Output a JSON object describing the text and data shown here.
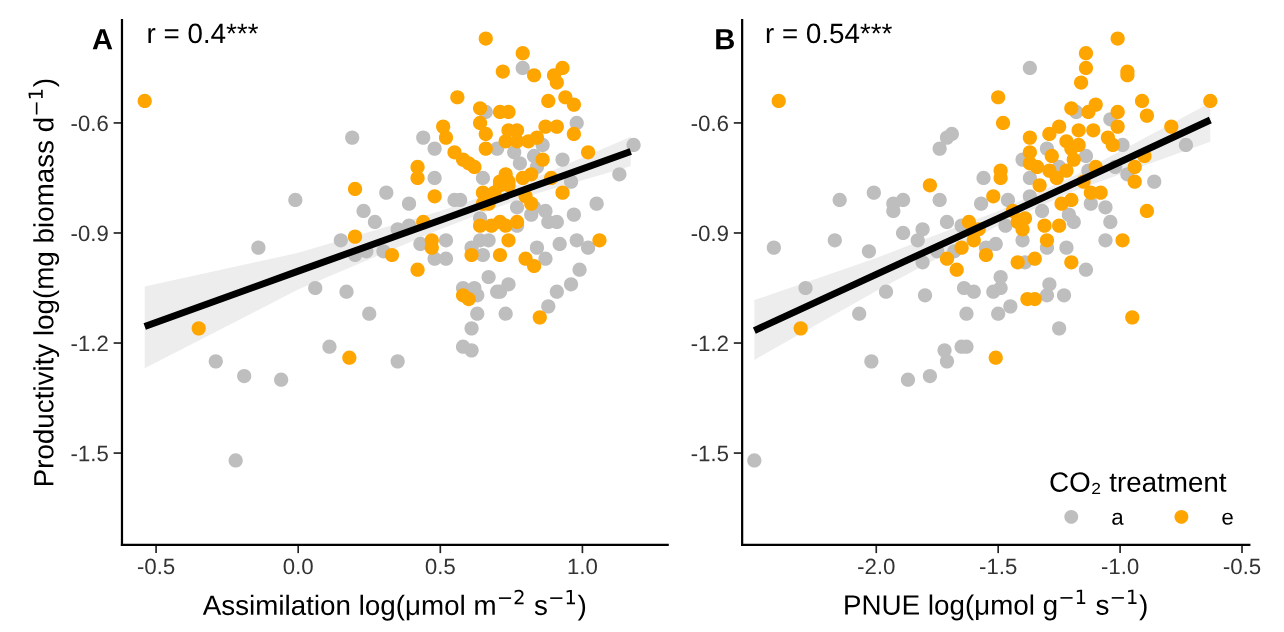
{
  "chart_data": [
    {
      "type": "scatter",
      "title": "A",
      "annotations": [
        "r = 0.4***"
      ],
      "xlabel": "Assimilation log(μmol m$^{−2}$ s$^{−1}$)",
      "ylabel": "Productivity log(mg biomass d$^{−1}$)",
      "xlim": [
        -0.62,
        1.3
      ],
      "xticks": [
        -0.5,
        {
          "value": 0,
          "label": "0.0"
        },
        0.5,
        {
          "value": 1,
          "label": "1.0"
        }
      ],
      "ylim": [
        -1.75,
        -0.32
      ],
      "yticks": [
        {
          "value": -1.5,
          "label": "-1.5"
        },
        {
          "value": -1.2,
          "label": "-1.2"
        },
        {
          "value": -0.9,
          "label": "-0.9"
        },
        {
          "value": -0.6,
          "label": "-0.6"
        }
      ],
      "grid": false,
      "legend": false,
      "series": [
        {
          "marker": "circle",
          "color": "#bebebe",
          "x": [
            0.19,
            -0.01,
            0.31,
            0.39,
            0.23,
            0.27,
            0.35,
            0.39,
            0.15,
            -0.14,
            0.2,
            0.24,
            0.3,
            0.06,
            0.17,
            0.25,
            0.11,
            0.35,
            -0.29,
            -0.19,
            -0.06,
            -0.22,
            0.79,
            0.66,
            0.98,
            0.44,
            0.48,
            0.7,
            0.86,
            0.76,
            0.78,
            0.83,
            0.84,
            0.93,
            1.18,
            1.13,
            0.48,
            0.65,
            0.96,
            0.55,
            0.57,
            0.64,
            1.05,
            0.77,
            0.83,
            0.87,
            0.64,
            0.77,
            0.82,
            0.88,
            0.91,
            0.97,
            0.43,
            0.52,
            0.61,
            0.64,
            0.67,
            0.65,
            0.84,
            0.92,
            0.98,
            1.02,
            0.48,
            0.52,
            0.87,
            0.99,
            0.67,
            0.58,
            0.62,
            0.63,
            0.7,
            0.74,
            0.71,
            0.96,
            0.91,
            0.88,
            0.63,
            0.73,
            0.61,
            0.58,
            0.61
          ],
          "values": [
            -0.64,
            -0.81,
            -0.79,
            -0.82,
            -0.84,
            -0.87,
            -0.89,
            -0.88,
            -0.92,
            -0.94,
            -0.96,
            -0.95,
            -0.95,
            -1.05,
            -1.06,
            -1.12,
            -1.21,
            -1.25,
            -1.25,
            -1.29,
            -1.3,
            -1.52,
            -0.45,
            -0.57,
            -0.6,
            -0.64,
            -0.67,
            -0.67,
            -0.66,
            -0.68,
            -0.71,
            -0.69,
            -0.72,
            -0.7,
            -0.66,
            -0.74,
            -0.75,
            -0.75,
            -0.76,
            -0.81,
            -0.81,
            null,
            -0.82,
            -0.83,
            -0.83,
            -0.84,
            -0.86,
            -0.88,
            -0.85,
            -0.87,
            -0.87,
            -0.85,
            -0.93,
            -0.92,
            -0.94,
            -0.92,
            -0.92,
            -0.96,
            -0.94,
            -0.93,
            -0.92,
            -0.94,
            -0.97,
            -0.97,
            -0.97,
            -1.0,
            -1.02,
            -1.05,
            -1.05,
            -1.07,
            -1.06,
            -1.04,
            -1.06,
            -1.04,
            -1.06,
            -1.1,
            -1.12,
            -1.12,
            -1.16,
            -1.21,
            -1.22
          ]
        },
        {
          "marker": "circle",
          "color": "#ffa500",
          "x": [
            -0.54,
            0.2,
            0.2,
            0.33,
            -0.35,
            0.18,
            0.66,
            0.79,
            0.72,
            0.83,
            0.93,
            0.9,
            0.91,
            0.56,
            0.88,
            0.94,
            0.97,
            0.64,
            0.64,
            0.66,
            0.71,
            0.74,
            0.51,
            0.52,
            0.74,
            0.77,
            0.73,
            0.77,
            0.81,
            0.84,
            0.87,
            0.91,
            0.97,
            0.66,
            0.55,
            0.58,
            0.6,
            0.62,
            0.86,
            1.02,
            0.42,
            0.42,
            0.73,
            0.71,
            0.71,
            0.74,
            0.74,
            0.79,
            0.82,
            0.89,
            0.93,
            0.48,
            0.65,
            0.69,
            0.67,
            0.65,
            0.8,
            0.82,
            0.64,
            0.68,
            0.71,
            0.73,
            0.77,
            0.44,
            0.74,
            0.47,
            0.47,
            0.61,
            0.71,
            1.06,
            0.8,
            0.83,
            0.42,
            0.58,
            0.6,
            0.85
          ],
          "values": [
            -0.54,
            -0.78,
            -0.91,
            -0.96,
            -1.16,
            -1.24,
            -0.37,
            -0.41,
            -0.46,
            -0.47,
            -0.45,
            -0.47,
            -0.49,
            -0.53,
            -0.54,
            -0.53,
            -0.55,
            -0.56,
            -0.6,
            -0.63,
            -0.57,
            -0.57,
            -0.61,
            -0.64,
            -0.62,
            -0.62,
            -0.65,
            -0.65,
            -0.65,
            -0.64,
            -0.61,
            -0.61,
            -0.63,
            -0.67,
            -0.68,
            -0.7,
            -0.71,
            -0.72,
            -0.7,
            -0.68,
            -0.72,
            -0.75,
            -0.74,
            -0.76,
            -0.77,
            -0.77,
            -0.76,
            -0.75,
            -0.74,
            -0.75,
            -0.79,
            -0.8,
            -0.79,
            -0.79,
            -0.82,
            -0.82,
            -0.8,
            -0.82,
            -0.88,
            -0.88,
            -0.87,
            -0.88,
            -0.87,
            -0.87,
            -0.92,
            -0.92,
            -0.94,
            -0.96,
            -0.96,
            -0.92,
            -0.97,
            -0.99,
            -1.0,
            -1.07,
            -1.08,
            -1.13
          ]
        },
        {
          "type": "line",
          "color": "#000000",
          "x": [
            -0.54,
            0.0,
            0.5,
            0.8,
            1.17
          ],
          "values": [
            -1.155,
            -1.004,
            -0.865,
            -0.781,
            -0.678
          ],
          "lower": [
            -1.269,
            -1.054,
            -0.89,
            -0.801,
            -0.718
          ],
          "upper": [
            -1.046,
            -0.954,
            -0.84,
            -0.761,
            -0.638
          ]
        }
      ]
    },
    {
      "type": "scatter",
      "title": "B",
      "annotations": [
        "r = 0.54***"
      ],
      "xlabel": "PNUE log(μmol g$^{−1}$ s$^{−1}$)",
      "legend_title": "CO₂ treatment",
      "xlim": [
        -2.55,
        -0.47
      ],
      "xticks": [
        {
          "value": -2,
          "label": "-2.0"
        },
        {
          "value": -1.5,
          "label": "-1.5"
        },
        {
          "value": -1,
          "label": "-1.0"
        },
        {
          "value": -0.5,
          "label": "-0.5"
        }
      ],
      "ylim": [
        -1.75,
        -0.32
      ],
      "yticks": [
        {
          "value": -1.5,
          "label": "-1.5"
        },
        {
          "value": -1.2,
          "label": "-1.2"
        },
        {
          "value": -0.9,
          "label": "-0.9"
        },
        {
          "value": -0.6,
          "label": "-0.6"
        }
      ],
      "grid": false,
      "legend": "bottom right",
      "series": [
        {
          "marker": "circle",
          "name": "a",
          "color": "#bebebe",
          "x": [
            -1.71,
            -1.69,
            -1.74,
            -1.56,
            -2.15,
            -2.01,
            -1.93,
            -1.93,
            -1.89,
            -1.74,
            -1.57,
            -1.71,
            -1.89,
            -1.81,
            -1.83,
            -1.65,
            -1.55,
            -2.42,
            -2.17,
            -2.03,
            -1.75,
            -1.81,
            -1.68,
            -2.29,
            -1.96,
            -1.8,
            -1.64,
            -1.6,
            -2.07,
            -1.63,
            -1.72,
            -1.71,
            -1.65,
            -1.63,
            -2.02,
            -1.87,
            -1.78,
            -2.5,
            -1.37,
            -1.18,
            -1.04,
            -0.73,
            -0.99,
            -1.3,
            -1.4,
            -1.25,
            -1.14,
            -1.13,
            -1.02,
            -0.97,
            -1.37,
            -0.86,
            -1.46,
            -1.37,
            -1.12,
            -1.06,
            -1.04,
            -1.21,
            -1.19,
            -1.32,
            -1.47,
            -1.4,
            -1.3,
            -1.22,
            -1.06,
            -1.51,
            -1.39,
            -1.14,
            -1.49,
            -1.49,
            -1.52,
            -1.45,
            -1.5,
            -1.29,
            -1.3,
            -1.23,
            -1.25
          ],
          "values": [
            -0.64,
            -0.63,
            -0.67,
            -0.75,
            -0.81,
            -0.79,
            -0.82,
            -0.84,
            -0.81,
            -0.81,
            -0.82,
            -0.87,
            -0.9,
            -0.89,
            -0.92,
            -0.88,
            -0.94,
            -0.94,
            -0.92,
            -0.95,
            -0.95,
            -0.98,
            -0.95,
            -1.05,
            -1.06,
            -1.07,
            -1.05,
            -1.06,
            -1.12,
            -1.12,
            -1.22,
            -1.25,
            -1.21,
            -1.21,
            -1.25,
            -1.3,
            -1.29,
            -1.52,
            -0.45,
            -0.57,
            -0.59,
            -0.66,
            -0.66,
            -0.67,
            -0.7,
            -0.72,
            -0.69,
            -0.73,
            -0.72,
            -0.74,
            -0.75,
            -0.76,
            -0.81,
            -0.8,
            -0.82,
            -0.83,
            -0.87,
            -0.85,
            -0.87,
            -0.84,
            -0.88,
            -0.92,
            -0.94,
            -0.94,
            -0.92,
            -0.93,
            -0.98,
            -1.0,
            -1.02,
            -1.05,
            -1.06,
            -1.1,
            -1.12,
            -1.04,
            -1.07,
            -1.07,
            -1.16
          ]
        },
        {
          "marker": "circle",
          "name": "e",
          "color": "#ffa500",
          "x": [
            -2.4,
            -1.78,
            -1.52,
            -1.62,
            -1.6,
            -1.58,
            -1.65,
            -1.55,
            -1.71,
            -1.67,
            -2.31,
            -1.01,
            -1.14,
            -1.14,
            -1.16,
            -0.97,
            -0.97,
            -1.5,
            -1.48,
            -0.91,
            -0.89,
            -0.63,
            -1.2,
            -1.1,
            -1.13,
            -1.01,
            -1.01,
            -1.11,
            -1.17,
            -1.25,
            -1.29,
            -1.05,
            -1.03,
            -0.79,
            -1.37,
            -1.22,
            -1.17,
            -1.2,
            -1.37,
            -1.37,
            -1.34,
            -1.28,
            -1.29,
            -1.22,
            -1.19,
            -1.1,
            -0.94,
            -0.9,
            -1.49,
            -1.49,
            -1.26,
            -1.15,
            -1.33,
            -0.94,
            -1.12,
            -1.08,
            -1.24,
            -1.2,
            -0.89,
            -1.44,
            -1.42,
            -1.39,
            -1.4,
            -1.31,
            -1.25,
            -1.3,
            -0.99,
            -1.42,
            -1.35,
            -1.2,
            -1.38,
            -1.35,
            -0.95,
            -1.51
          ],
          "values": [
            -0.54,
            -0.77,
            -0.8,
            -0.87,
            -0.92,
            -0.89,
            -0.94,
            -0.96,
            -0.97,
            -1.0,
            -1.16,
            -0.37,
            -0.41,
            -0.45,
            -0.49,
            -0.46,
            -0.47,
            -0.53,
            -0.6,
            -0.54,
            -0.58,
            -0.54,
            -0.56,
            -0.55,
            -0.57,
            -0.57,
            -0.61,
            -0.62,
            -0.62,
            -0.61,
            -0.63,
            -0.64,
            -0.66,
            -0.61,
            -0.64,
            -0.65,
            -0.66,
            -0.67,
            -0.68,
            -0.71,
            -0.72,
            -0.69,
            -0.73,
            -0.73,
            -0.7,
            -0.72,
            -0.72,
            -0.69,
            -0.73,
            -0.75,
            -0.75,
            -0.76,
            -0.77,
            -0.76,
            -0.79,
            -0.79,
            -0.82,
            -0.81,
            -0.84,
            -0.84,
            -0.87,
            -0.86,
            -0.89,
            -0.88,
            -0.88,
            -0.92,
            -0.92,
            -0.98,
            -0.97,
            -0.98,
            -1.08,
            -1.08,
            -1.13,
            -1.24
          ]
        },
        {
          "type": "line",
          "color": "#000000",
          "x": [
            -2.5,
            -2.0,
            -1.5,
            -1.2,
            -0.63
          ],
          "values": [
            -1.166,
            -1.013,
            -0.86,
            -0.768,
            -0.592
          ],
          "lower": [
            -1.246,
            -1.058,
            -0.88,
            -0.788,
            -0.651
          ],
          "upper": [
            -1.083,
            -0.968,
            -0.84,
            -0.748,
            -0.545
          ]
        }
      ]
    }
  ]
}
